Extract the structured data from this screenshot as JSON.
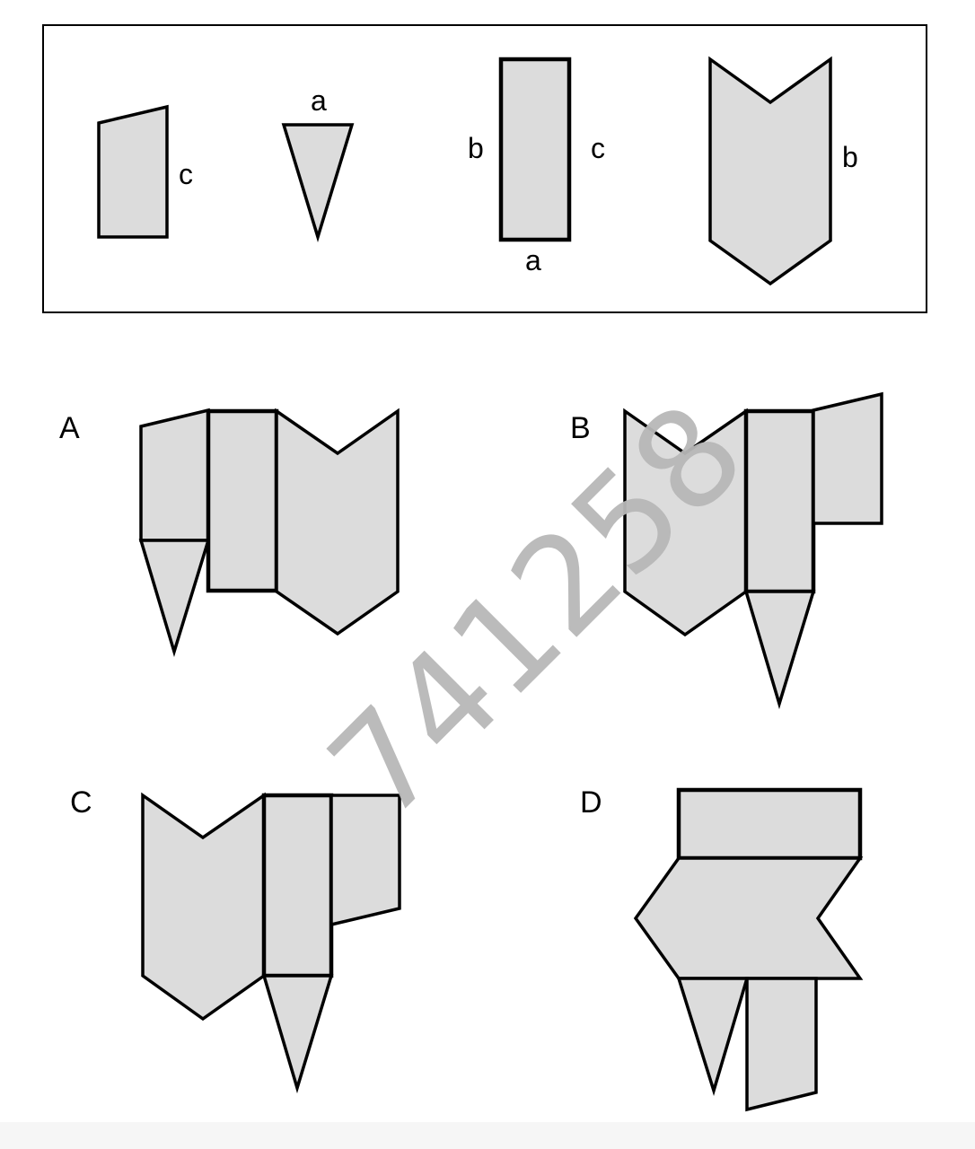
{
  "reference": {
    "labels": {
      "trapezoid_side": "c",
      "triangle_top": "a",
      "rect_left": "b",
      "rect_right": "c",
      "rect_bottom": "a",
      "chevron_side": "b"
    }
  },
  "options": [
    {
      "id": "A",
      "label": "A"
    },
    {
      "id": "B",
      "label": "B"
    },
    {
      "id": "C",
      "label": "C"
    },
    {
      "id": "D",
      "label": "D"
    }
  ],
  "watermark": "741258",
  "colors": {
    "shape_fill": "#dcdcdc",
    "stroke": "#000000",
    "watermark": "#b8b8b8"
  }
}
